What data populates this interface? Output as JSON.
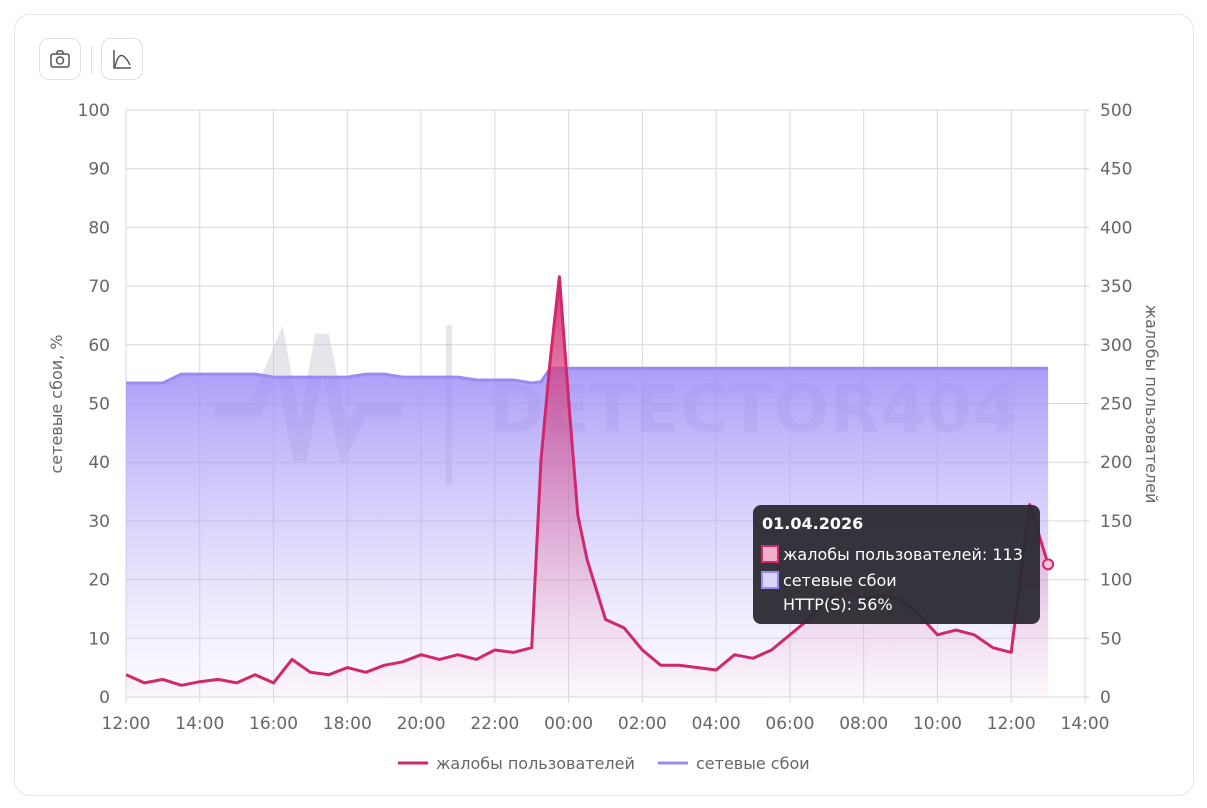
{
  "chart_data": {
    "type": "line",
    "watermark": "DETECTOR404",
    "y_label": "сетевые сбои, %",
    "y2_label": "жалобы пользователей",
    "x": [
      0,
      0.5,
      1,
      1.5,
      2,
      2.5,
      3,
      3.5,
      4,
      4.5,
      5,
      5.5,
      6,
      6.5,
      7,
      7.5,
      8,
      8.5,
      9,
      9.5,
      10,
      10.5,
      11,
      11.25,
      11.5,
      11.75,
      12,
      12.25,
      12.5,
      13,
      13.5,
      14,
      14.5,
      15,
      15.5,
      16,
      16.5,
      17,
      17.5,
      18,
      18.5,
      19,
      19.5,
      20,
      20.5,
      21,
      21.5,
      22,
      22.5,
      23,
      23.5,
      24,
      24.5,
      25
    ],
    "xlim": [
      0,
      26
    ],
    "xticks": [
      {
        "value": 0,
        "label": "12:00"
      },
      {
        "value": 2,
        "label": "14:00"
      },
      {
        "value": 4,
        "label": "16:00"
      },
      {
        "value": 6,
        "label": "18:00"
      },
      {
        "value": 8,
        "label": "20:00"
      },
      {
        "value": 10,
        "label": "22:00"
      },
      {
        "value": 12,
        "label": "00:00"
      },
      {
        "value": 14,
        "label": "02:00"
      },
      {
        "value": 16,
        "label": "04:00"
      },
      {
        "value": 18,
        "label": "06:00"
      },
      {
        "value": 20,
        "label": "08:00"
      },
      {
        "value": 22,
        "label": "10:00"
      },
      {
        "value": 24,
        "label": "12:00"
      },
      {
        "value": 26,
        "label": "14:00"
      }
    ],
    "ylim": [
      0,
      100
    ],
    "yticks": [
      0,
      10,
      20,
      30,
      40,
      50,
      60,
      70,
      80,
      90,
      100
    ],
    "y2lim": [
      0,
      500
    ],
    "y2ticks": [
      0,
      50,
      100,
      150,
      200,
      250,
      300,
      350,
      400,
      450,
      500
    ],
    "grid": true,
    "series": [
      {
        "name": "жалобы пользователей",
        "color": "#d0286a",
        "axis": "y2",
        "values": [
          19,
          12,
          15,
          10,
          13,
          15,
          12,
          19,
          12,
          32,
          21,
          19,
          25,
          21,
          27,
          30,
          36,
          32,
          36,
          32,
          40,
          38,
          42,
          202,
          287,
          358,
          253,
          155,
          117,
          66,
          59,
          40,
          27,
          27,
          25,
          23,
          36,
          33,
          40,
          53,
          66,
          83,
          91,
          84,
          87,
          83,
          70,
          53,
          57,
          53,
          42,
          38,
          164,
          113
        ]
      },
      {
        "name": "сетевые сбои",
        "color": "#9b8af0",
        "values": [
          53.5,
          53.5,
          53.5,
          55,
          55,
          55,
          55,
          55,
          54.5,
          54.5,
          54.5,
          54.5,
          54.5,
          55,
          55,
          54.5,
          54.5,
          54.5,
          54.5,
          54,
          54,
          54,
          53.5,
          53.7,
          56,
          56,
          56,
          56,
          56,
          56,
          56,
          56,
          56,
          56,
          56,
          56,
          56,
          56,
          56,
          56,
          56,
          56,
          56,
          56,
          56,
          56,
          56,
          56,
          56,
          56,
          56,
          56,
          56,
          56
        ]
      }
    ],
    "tooltip": {
      "date": "01.04.2026",
      "items": [
        "жалобы пользователей: 113",
        "сетевые сбои",
        "HTTP(S): 56%"
      ]
    }
  }
}
